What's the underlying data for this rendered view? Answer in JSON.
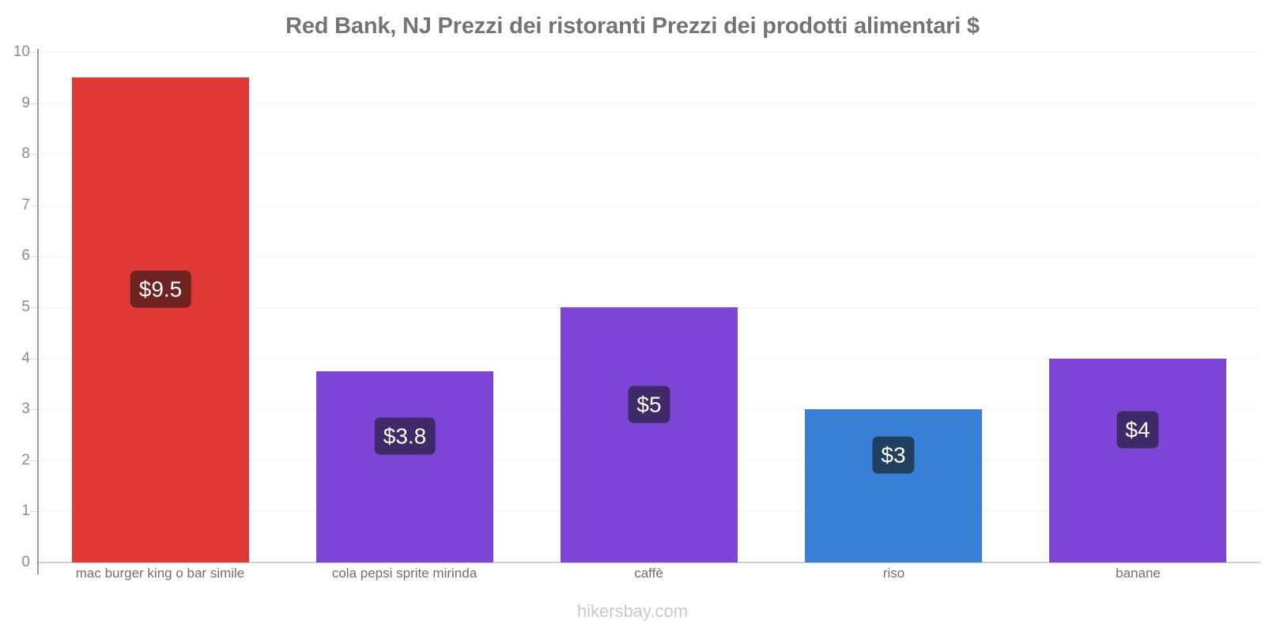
{
  "title": "Red Bank, NJ Prezzi dei ristoranti Prezzi dei prodotti alimentari $",
  "watermark": "hikersbay.com",
  "colors": {
    "title_text": "#747474",
    "axis_line": "#9a9a9a",
    "baseline": "#cfcfcf",
    "gridline": "#f2f2f2",
    "tick_text": "#8c8c8c",
    "category_text": "#6f6f6f",
    "watermark_text": "#c9c9ce",
    "badge_text": "#ffffff"
  },
  "chart_data": {
    "type": "bar",
    "title": "Red Bank, NJ Prezzi dei ristoranti Prezzi dei prodotti alimentari $",
    "categories": [
      "mac burger king o bar simile",
      "cola pepsi sprite mirinda",
      "caffè",
      "riso",
      "banane"
    ],
    "values": [
      9.5,
      3.75,
      5,
      3,
      4
    ],
    "bar_labels": [
      "$9.5",
      "$3.8",
      "$5",
      "$3",
      "$4"
    ],
    "bar_colors": [
      "#e03837",
      "#7e46d6",
      "#7e46d6",
      "#3a80d9",
      "#7e46d6"
    ],
    "badge_colors": [
      "#6e2321",
      "#3e2a68",
      "#3e2a68",
      "#21405f",
      "#3e2a68"
    ],
    "xlabel": "",
    "ylabel": "",
    "ylim": [
      0,
      10
    ],
    "yticks": [
      0,
      1,
      2,
      3,
      4,
      5,
      6,
      7,
      8,
      9,
      10
    ],
    "grid": "horizontal-light",
    "legend": "none",
    "currency": "$",
    "source": "hikersbay.com"
  }
}
